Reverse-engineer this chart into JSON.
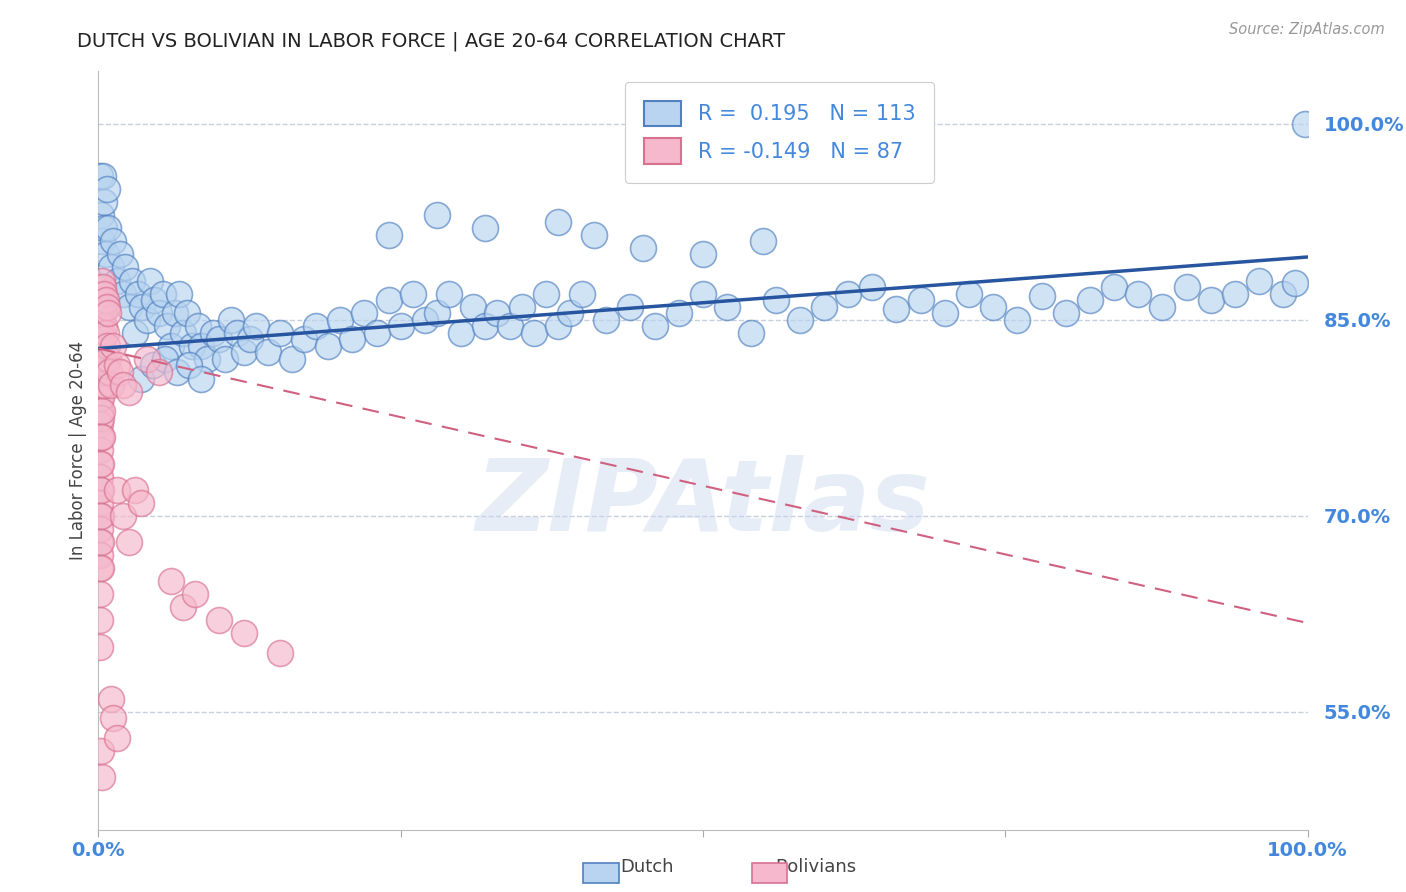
{
  "title": "DUTCH VS BOLIVIAN IN LABOR FORCE | AGE 20-64 CORRELATION CHART",
  "source_text": "Source: ZipAtlas.com",
  "ylabel": "In Labor Force | Age 20-64",
  "legend_label_dutch": "Dutch",
  "legend_label_bolivian": "Bolivians",
  "R_dutch": 0.195,
  "N_dutch": 113,
  "R_bolivian": -0.149,
  "N_bolivian": 87,
  "xlim": [
    0.0,
    1.0
  ],
  "ylim": [
    0.46,
    1.04
  ],
  "yticks": [
    0.55,
    0.7,
    0.85,
    1.0
  ],
  "ytick_labels": [
    "55.0%",
    "70.0%",
    "85.0%",
    "100.0%"
  ],
  "color_dutch": "#b8d4f0",
  "color_dutch_edge": "#5080c0",
  "color_dutch_line": "#2855a0",
  "color_bolivian": "#f5b8cc",
  "color_bolivian_edge": "#d87090",
  "color_bolivian_line": "#d06080",
  "watermark": "ZIPAtlas",
  "background_color": "#ffffff",
  "title_color": "#222222",
  "axis_label_color": "#444444",
  "tick_label_color": "#4488dd",
  "grid_color": "#c8d0e0",
  "dutch_trend_y0": 0.828,
  "dutch_trend_y1": 0.898,
  "bolivian_trend_y0": 0.828,
  "bolivian_trend_y1": 0.618,
  "dutch_points": [
    [
      0.001,
      0.96
    ],
    [
      0.002,
      0.93
    ],
    [
      0.003,
      0.91
    ],
    [
      0.004,
      0.96
    ],
    [
      0.005,
      0.94
    ],
    [
      0.005,
      0.92
    ],
    [
      0.006,
      0.9
    ],
    [
      0.007,
      0.95
    ],
    [
      0.008,
      0.92
    ],
    [
      0.01,
      0.89
    ],
    [
      0.012,
      0.91
    ],
    [
      0.015,
      0.88
    ],
    [
      0.018,
      0.9
    ],
    [
      0.02,
      0.87
    ],
    [
      0.022,
      0.89
    ],
    [
      0.025,
      0.86
    ],
    [
      0.028,
      0.88
    ],
    [
      0.03,
      0.84
    ],
    [
      0.033,
      0.87
    ],
    [
      0.036,
      0.86
    ],
    [
      0.04,
      0.85
    ],
    [
      0.043,
      0.88
    ],
    [
      0.046,
      0.865
    ],
    [
      0.05,
      0.855
    ],
    [
      0.053,
      0.87
    ],
    [
      0.057,
      0.845
    ],
    [
      0.06,
      0.83
    ],
    [
      0.063,
      0.855
    ],
    [
      0.067,
      0.87
    ],
    [
      0.07,
      0.84
    ],
    [
      0.073,
      0.855
    ],
    [
      0.077,
      0.83
    ],
    [
      0.082,
      0.845
    ],
    [
      0.085,
      0.83
    ],
    [
      0.09,
      0.82
    ],
    [
      0.095,
      0.84
    ],
    [
      0.1,
      0.835
    ],
    [
      0.105,
      0.82
    ],
    [
      0.11,
      0.85
    ],
    [
      0.115,
      0.84
    ],
    [
      0.12,
      0.825
    ],
    [
      0.125,
      0.835
    ],
    [
      0.13,
      0.845
    ],
    [
      0.14,
      0.825
    ],
    [
      0.15,
      0.84
    ],
    [
      0.16,
      0.82
    ],
    [
      0.17,
      0.835
    ],
    [
      0.18,
      0.845
    ],
    [
      0.19,
      0.83
    ],
    [
      0.2,
      0.85
    ],
    [
      0.21,
      0.835
    ],
    [
      0.22,
      0.855
    ],
    [
      0.23,
      0.84
    ],
    [
      0.24,
      0.865
    ],
    [
      0.25,
      0.845
    ],
    [
      0.26,
      0.87
    ],
    [
      0.27,
      0.85
    ],
    [
      0.28,
      0.855
    ],
    [
      0.29,
      0.87
    ],
    [
      0.3,
      0.84
    ],
    [
      0.31,
      0.86
    ],
    [
      0.32,
      0.845
    ],
    [
      0.33,
      0.855
    ],
    [
      0.34,
      0.845
    ],
    [
      0.35,
      0.86
    ],
    [
      0.36,
      0.84
    ],
    [
      0.37,
      0.87
    ],
    [
      0.38,
      0.845
    ],
    [
      0.39,
      0.855
    ],
    [
      0.4,
      0.87
    ],
    [
      0.42,
      0.85
    ],
    [
      0.44,
      0.86
    ],
    [
      0.46,
      0.845
    ],
    [
      0.48,
      0.855
    ],
    [
      0.5,
      0.87
    ],
    [
      0.52,
      0.86
    ],
    [
      0.54,
      0.84
    ],
    [
      0.56,
      0.865
    ],
    [
      0.58,
      0.85
    ],
    [
      0.6,
      0.86
    ],
    [
      0.62,
      0.87
    ],
    [
      0.64,
      0.875
    ],
    [
      0.66,
      0.858
    ],
    [
      0.68,
      0.865
    ],
    [
      0.7,
      0.855
    ],
    [
      0.72,
      0.87
    ],
    [
      0.74,
      0.86
    ],
    [
      0.76,
      0.85
    ],
    [
      0.78,
      0.868
    ],
    [
      0.8,
      0.855
    ],
    [
      0.82,
      0.865
    ],
    [
      0.84,
      0.875
    ],
    [
      0.86,
      0.87
    ],
    [
      0.88,
      0.86
    ],
    [
      0.9,
      0.875
    ],
    [
      0.92,
      0.865
    ],
    [
      0.94,
      0.87
    ],
    [
      0.96,
      0.88
    ],
    [
      0.98,
      0.87
    ],
    [
      0.99,
      0.878
    ],
    [
      0.998,
      1.0
    ],
    [
      0.035,
      0.805
    ],
    [
      0.045,
      0.815
    ],
    [
      0.055,
      0.82
    ],
    [
      0.065,
      0.81
    ],
    [
      0.075,
      0.815
    ],
    [
      0.085,
      0.805
    ],
    [
      0.5,
      0.9
    ],
    [
      0.55,
      0.91
    ],
    [
      0.45,
      0.905
    ],
    [
      0.41,
      0.915
    ],
    [
      0.38,
      0.925
    ],
    [
      0.32,
      0.92
    ],
    [
      0.28,
      0.93
    ],
    [
      0.24,
      0.915
    ]
  ],
  "bolivian_points": [
    [
      0.001,
      0.84
    ],
    [
      0.001,
      0.82
    ],
    [
      0.001,
      0.86
    ],
    [
      0.001,
      0.87
    ],
    [
      0.001,
      0.855
    ],
    [
      0.001,
      0.845
    ],
    [
      0.001,
      0.81
    ],
    [
      0.001,
      0.83
    ],
    [
      0.001,
      0.875
    ],
    [
      0.001,
      0.8
    ],
    [
      0.001,
      0.79
    ],
    [
      0.001,
      0.78
    ],
    [
      0.001,
      0.77
    ],
    [
      0.001,
      0.76
    ],
    [
      0.001,
      0.75
    ],
    [
      0.001,
      0.74
    ],
    [
      0.001,
      0.73
    ],
    [
      0.001,
      0.72
    ],
    [
      0.001,
      0.71
    ],
    [
      0.001,
      0.7
    ],
    [
      0.001,
      0.69
    ],
    [
      0.001,
      0.68
    ],
    [
      0.001,
      0.67
    ],
    [
      0.001,
      0.66
    ],
    [
      0.001,
      0.64
    ],
    [
      0.001,
      0.62
    ],
    [
      0.001,
      0.6
    ],
    [
      0.002,
      0.85
    ],
    [
      0.002,
      0.83
    ],
    [
      0.002,
      0.815
    ],
    [
      0.002,
      0.8
    ],
    [
      0.002,
      0.79
    ],
    [
      0.002,
      0.775
    ],
    [
      0.002,
      0.76
    ],
    [
      0.002,
      0.74
    ],
    [
      0.002,
      0.72
    ],
    [
      0.002,
      0.7
    ],
    [
      0.002,
      0.68
    ],
    [
      0.002,
      0.66
    ],
    [
      0.003,
      0.86
    ],
    [
      0.003,
      0.84
    ],
    [
      0.003,
      0.82
    ],
    [
      0.003,
      0.8
    ],
    [
      0.003,
      0.78
    ],
    [
      0.003,
      0.76
    ],
    [
      0.004,
      0.855
    ],
    [
      0.004,
      0.835
    ],
    [
      0.004,
      0.81
    ],
    [
      0.005,
      0.845
    ],
    [
      0.005,
      0.82
    ],
    [
      0.005,
      0.8
    ],
    [
      0.006,
      0.84
    ],
    [
      0.006,
      0.815
    ],
    [
      0.007,
      0.83
    ],
    [
      0.008,
      0.82
    ],
    [
      0.009,
      0.81
    ],
    [
      0.01,
      0.8
    ],
    [
      0.012,
      0.83
    ],
    [
      0.015,
      0.815
    ],
    [
      0.018,
      0.81
    ],
    [
      0.02,
      0.8
    ],
    [
      0.025,
      0.795
    ],
    [
      0.003,
      0.88
    ],
    [
      0.004,
      0.875
    ],
    [
      0.005,
      0.87
    ],
    [
      0.006,
      0.865
    ],
    [
      0.007,
      0.86
    ],
    [
      0.008,
      0.855
    ],
    [
      0.003,
      0.5
    ],
    [
      0.002,
      0.52
    ],
    [
      0.015,
      0.72
    ],
    [
      0.02,
      0.7
    ],
    [
      0.025,
      0.68
    ],
    [
      0.03,
      0.72
    ],
    [
      0.035,
      0.71
    ],
    [
      0.04,
      0.82
    ],
    [
      0.05,
      0.81
    ],
    [
      0.06,
      0.65
    ],
    [
      0.07,
      0.63
    ],
    [
      0.08,
      0.64
    ],
    [
      0.1,
      0.62
    ],
    [
      0.12,
      0.61
    ],
    [
      0.15,
      0.595
    ],
    [
      0.01,
      0.56
    ],
    [
      0.012,
      0.545
    ],
    [
      0.015,
      0.53
    ]
  ]
}
